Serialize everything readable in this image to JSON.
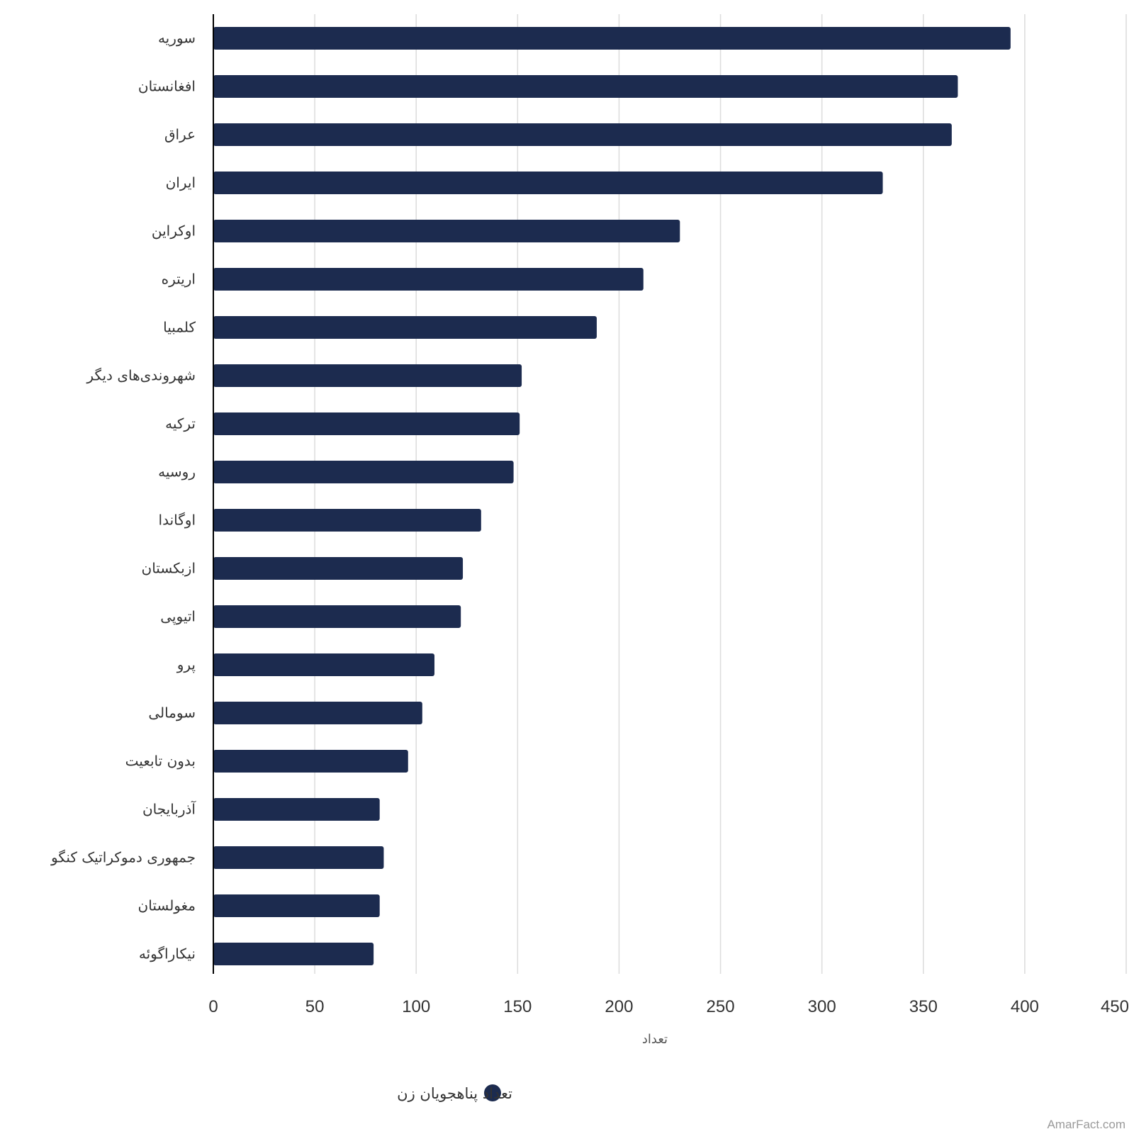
{
  "chart_data": {
    "type": "bar",
    "orientation": "horizontal",
    "categories": [
      "سوریه",
      "افغانستان",
      "عراق",
      "ایران",
      "اوکراین",
      "اریتره",
      "کلمبیا",
      "شهروندی‌های دیگر",
      "ترکیه",
      "روسیه",
      "اوگاندا",
      "ازبکستان",
      "اتیوپی",
      "پرو",
      "سومالی",
      "بدون تابعیت",
      "آذربایجان",
      "جمهوری دموکراتیک کنگو",
      "مغولستان",
      "نیکاراگوئه"
    ],
    "series": [
      {
        "name": "تعداد پناهجویان زن",
        "color": "#1c2b4f",
        "values": [
          393,
          367,
          364,
          330,
          230,
          212,
          189,
          152,
          151,
          148,
          132,
          123,
          122,
          109,
          103,
          96,
          82,
          84,
          82,
          79
        ]
      }
    ],
    "xlabel": "تعداد",
    "ylabel": "",
    "xlim": [
      0,
      450
    ],
    "ticks": [
      "0",
      "50",
      "100",
      "150",
      "200",
      "250",
      "300",
      "350",
      "400",
      "450"
    ],
    "grid": true,
    "legend_position": "bottom"
  },
  "watermark": "AmarFact.com"
}
